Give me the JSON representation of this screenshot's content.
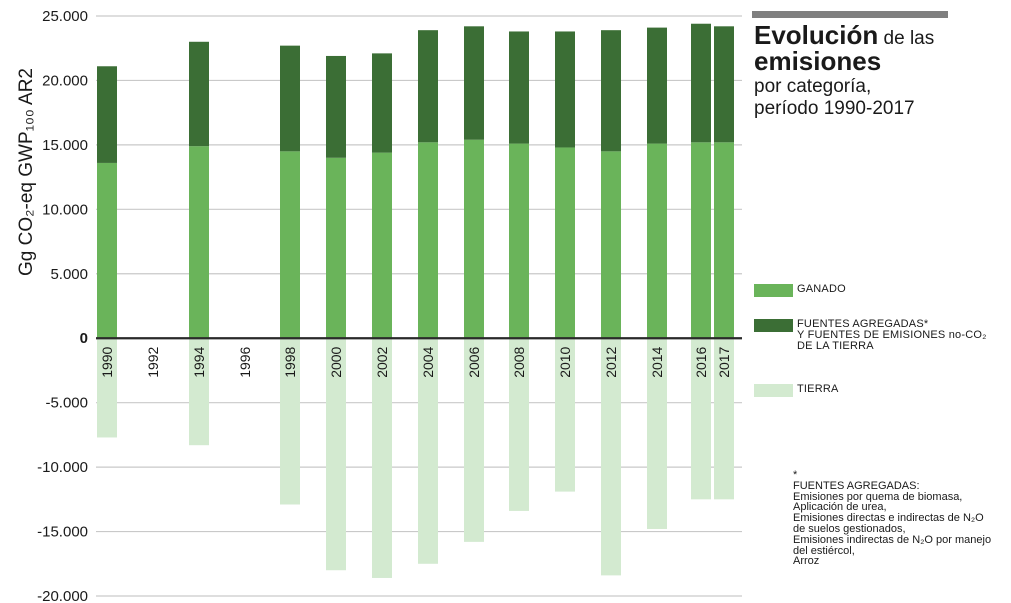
{
  "chart_data": {
    "type": "bar",
    "stacked": true,
    "title_bold_1": "Evolución",
    "title_rest_1": " de las",
    "title_bold_2": "emisiones",
    "title_line_3": "por categoría,",
    "title_line_4": "período 1990-2017",
    "ylabel": "Gg CO₂-eq GWP₁₀₀ AR2",
    "ylim": [
      -20000,
      25000
    ],
    "yticks": [
      {
        "value": 25000,
        "label": "25.000"
      },
      {
        "value": 20000,
        "label": "20.000"
      },
      {
        "value": 15000,
        "label": "15.000"
      },
      {
        "value": 10000,
        "label": "10.000"
      },
      {
        "value": 5000,
        "label": "5.000"
      },
      {
        "value": 0,
        "label": "0"
      },
      {
        "value": -5000,
        "label": "-5.000"
      },
      {
        "value": -10000,
        "label": "-10.000"
      },
      {
        "value": -15000,
        "label": "-15.000"
      },
      {
        "value": -20000,
        "label": "-20.000"
      }
    ],
    "grid": true,
    "categories": [
      "1990",
      "1992",
      "1994",
      "1996",
      "1998",
      "2000",
      "2002",
      "2004",
      "2006",
      "2008",
      "2010",
      "2012",
      "2014",
      "2016",
      "2017"
    ],
    "series": [
      {
        "name": "GANADO",
        "color": "#6ab45a",
        "values": [
          13600,
          null,
          14900,
          null,
          14500,
          14000,
          14400,
          15200,
          15400,
          15100,
          14800,
          14500,
          15100,
          15200,
          15200
        ]
      },
      {
        "name": "FUENTES AGREGADAS*\nY FUENTES DE EMISIONES no-CO₂\nDE LA TIERRA",
        "color": "#3b6e35",
        "values": [
          7500,
          null,
          8100,
          null,
          8200,
          7900,
          7700,
          8700,
          8800,
          8700,
          9000,
          9400,
          9000,
          9200,
          9000
        ]
      },
      {
        "name": "TIERRA",
        "color": "#d3ead0",
        "values": [
          -7700,
          null,
          -8300,
          null,
          -12900,
          -18000,
          -18600,
          -17500,
          -15800,
          -13400,
          -11900,
          -18400,
          -14800,
          -12500,
          -12500
        ]
      }
    ],
    "legend": "right",
    "note_lines": [
      "*",
      "FUENTES AGREGADAS:",
      "Emisiones por quema de biomasa,",
      "Aplicación de urea,",
      "Emisiones directas e indirectas de N₂O",
      "de suelos gestionados,",
      "Emisiones indirectas de N₂O por manejo",
      "del estiércol,",
      "Arroz"
    ]
  }
}
